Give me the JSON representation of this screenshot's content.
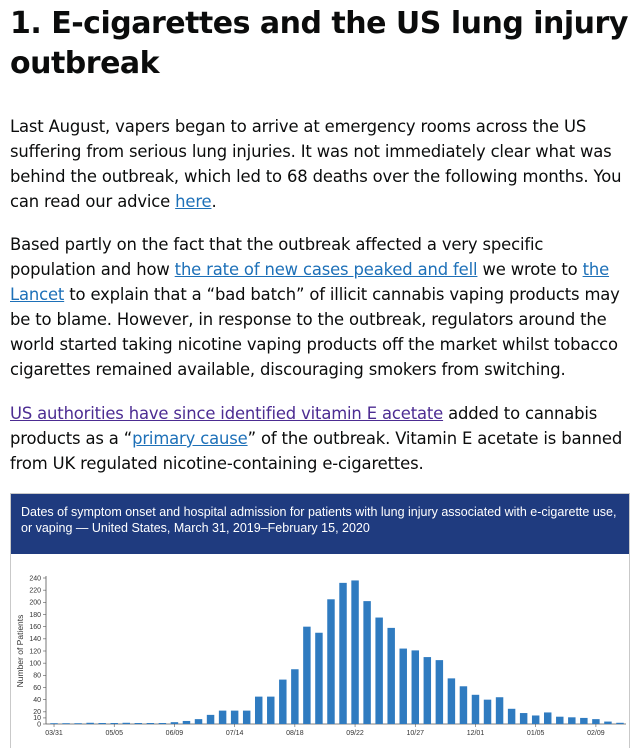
{
  "article": {
    "heading": "1. E-cigarettes and the US lung injury outbreak",
    "p1": {
      "text": "Last August, vapers began to arrive at emergency rooms across the US suffering from serious lung injuries. It was not immediately clear what was behind the outbreak, which led to 68 deaths over the following months. You can read our advice ",
      "link": "here",
      "end": "."
    },
    "p2": {
      "t1": "Based partly on the fact that the outbreak affected a very specific population and how ",
      "link1": "the rate of new cases peaked and fell",
      "t2": " we wrote to ",
      "link2": "the Lancet",
      "t3": " to explain that a “bad batch” of illicit cannabis vaping products may be to blame. However, in response to the outbreak, regulators around the world started taking nicotine vaping products off the market whilst tobacco cigarettes remained available, discouraging smokers from switching."
    },
    "p3": {
      "link1": "US authorities have since identified vitamin E acetate",
      "t1": " added to cannabis products as a “",
      "link2": "primary cause",
      "t2": "” of the outbreak. Vitamin E acetate is banned from UK regulated nicotine-containing e-cigarettes."
    }
  },
  "figure": {
    "title": "Dates of symptom onset and hospital admission for patients with lung injury associated with e-cigarette use, or vaping — United States, March 31, 2019–February 15, 2020"
  },
  "chart_data": {
    "type": "bar",
    "title": "Dates of symptom onset and hospital admission for patients with lung injury associated with e-cigarette use, or vaping — United States, March 31, 2019–February 15, 2020",
    "xlabel": "",
    "ylabel": "Number of Patients",
    "ylim": [
      0,
      240
    ],
    "yticks": [
      0,
      10,
      20,
      40,
      60,
      80,
      100,
      120,
      140,
      160,
      180,
      200,
      220,
      240
    ],
    "xtick_labels": [
      "03/31",
      "05/05",
      "06/09",
      "07/14",
      "08/18",
      "09/22",
      "10/27",
      "12/01",
      "01/05",
      "02/09"
    ],
    "xtick_every": 5,
    "color": "#2f7bc0",
    "values": [
      0,
      0,
      0,
      2,
      1,
      1,
      2,
      1,
      1,
      1,
      3,
      5,
      8,
      15,
      22,
      22,
      22,
      45,
      45,
      73,
      90,
      160,
      150,
      205,
      232,
      236,
      202,
      175,
      158,
      124,
      121,
      110,
      105,
      75,
      62,
      48,
      40,
      44,
      25,
      18,
      14,
      19,
      12,
      11,
      10,
      8,
      4,
      2
    ]
  }
}
